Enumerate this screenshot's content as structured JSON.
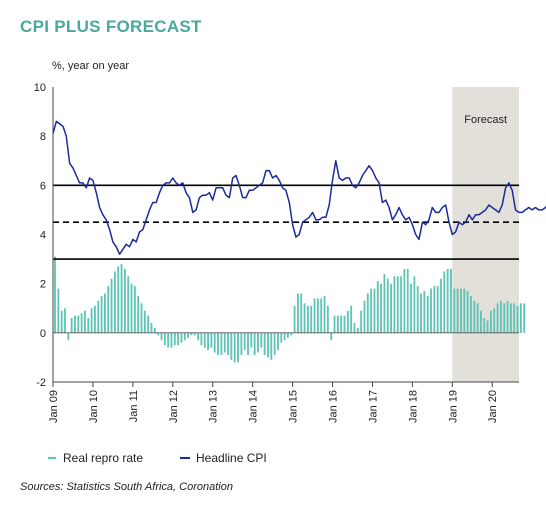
{
  "title": "CPI PLUS FORECAST",
  "source": "Sources: Statistics South Africa, Coronation",
  "colors": {
    "title": "#4aa99c",
    "bars": "#5ec4b6",
    "line": "#1d2a9c",
    "forecast_shade": "#e3e0da",
    "reference_lines": "#000000"
  },
  "chart_data": {
    "type": "bar+line",
    "ylabel": "%, year on year",
    "ylim": [
      -2,
      10
    ],
    "yticks": [
      -2,
      0,
      2,
      4,
      6,
      8,
      10
    ],
    "xlim": [
      2009.0,
      2020.67
    ],
    "xticks": [
      {
        "label": "Jan 09",
        "x": 2009
      },
      {
        "label": "Jan 10",
        "x": 2010
      },
      {
        "label": "Jan 11",
        "x": 2011
      },
      {
        "label": "Jan 12",
        "x": 2012
      },
      {
        "label": "Jan 13",
        "x": 2013
      },
      {
        "label": "Jan 14",
        "x": 2014
      },
      {
        "label": "Jan 15",
        "x": 2015
      },
      {
        "label": "Jan 16",
        "x": 2016
      },
      {
        "label": "Jan 17",
        "x": 2017
      },
      {
        "label": "Jan 18",
        "x": 2018
      },
      {
        "label": "Jan 19",
        "x": 2019
      },
      {
        "label": "Jan 20",
        "x": 2020
      }
    ],
    "forecast": {
      "label": "Forecast",
      "start": 2019.0,
      "end": 2020.67
    },
    "hlines": [
      {
        "y": 6,
        "style": "solid"
      },
      {
        "y": 4.5,
        "style": "dashed"
      },
      {
        "y": 3,
        "style": "solid"
      }
    ],
    "legend": [
      "Real repro rate",
      "Headline CPI"
    ],
    "series": [
      {
        "name": "Real repro rate",
        "type": "bar",
        "start": "Jan 09",
        "values": [
          3.1,
          1.8,
          0.9,
          1.0,
          -0.3,
          0.6,
          0.7,
          0.7,
          0.8,
          0.9,
          0.6,
          1.0,
          1.1,
          1.3,
          1.5,
          1.6,
          1.9,
          2.2,
          2.5,
          2.7,
          2.8,
          2.6,
          2.3,
          2.0,
          1.9,
          1.5,
          1.2,
          0.9,
          0.7,
          0.4,
          0.2,
          -0.1,
          -0.3,
          -0.5,
          -0.6,
          -0.6,
          -0.5,
          -0.5,
          -0.4,
          -0.3,
          -0.2,
          -0.1,
          -0.1,
          -0.3,
          -0.5,
          -0.6,
          -0.7,
          -0.6,
          -0.8,
          -0.9,
          -0.9,
          -0.8,
          -0.9,
          -1.1,
          -1.2,
          -1.2,
          -0.9,
          -0.7,
          -0.9,
          -0.6,
          -0.9,
          -0.8,
          -0.6,
          -0.9,
          -1.0,
          -1.1,
          -0.9,
          -0.7,
          -0.4,
          -0.3,
          -0.2,
          -0.1,
          1.1,
          1.6,
          1.6,
          1.2,
          1.1,
          1.1,
          1.4,
          1.4,
          1.4,
          1.5,
          1.1,
          -0.3,
          0.7,
          0.7,
          0.7,
          0.7,
          0.9,
          1.1,
          0.4,
          0.2,
          0.9,
          1.3,
          1.6,
          1.8,
          1.8,
          2.1,
          2.0,
          2.4,
          2.2,
          2.0,
          2.3,
          2.3,
          2.3,
          2.6,
          2.6,
          2.0,
          2.3,
          1.9,
          1.6,
          1.7,
          1.5,
          1.8,
          1.9,
          1.9,
          2.2,
          2.5,
          2.6,
          2.6,
          1.8,
          1.8,
          1.8,
          1.8,
          1.7,
          1.5,
          1.3,
          1.2,
          0.9,
          0.6,
          0.5,
          0.9,
          1.0,
          1.2,
          1.3,
          1.2,
          1.3,
          1.2,
          1.2,
          1.1,
          1.2,
          1.2
        ]
      },
      {
        "name": "Headline CPI",
        "type": "line",
        "start": "Jan 09",
        "values": [
          8.1,
          8.6,
          8.5,
          8.4,
          8.0,
          6.9,
          6.7,
          6.4,
          6.1,
          6.1,
          5.9,
          6.3,
          6.2,
          5.7,
          5.1,
          4.8,
          4.6,
          4.2,
          3.7,
          3.5,
          3.2,
          3.4,
          3.6,
          3.5,
          3.8,
          3.7,
          4.1,
          4.2,
          4.6,
          5.0,
          5.3,
          5.3,
          5.7,
          6.0,
          6.1,
          6.1,
          6.3,
          6.1,
          6.0,
          6.1,
          5.7,
          5.5,
          4.9,
          5.0,
          5.5,
          5.6,
          5.6,
          5.7,
          5.4,
          5.9,
          5.9,
          5.9,
          5.6,
          5.5,
          6.3,
          6.4,
          6.0,
          5.5,
          5.5,
          5.8,
          5.8,
          5.9,
          6.0,
          6.1,
          6.6,
          6.6,
          6.3,
          6.4,
          6.2,
          5.9,
          5.8,
          5.3,
          4.4,
          3.9,
          4.0,
          4.5,
          4.6,
          4.7,
          4.9,
          4.6,
          4.6,
          4.7,
          4.7,
          5.2,
          6.2,
          7.0,
          6.3,
          6.2,
          6.3,
          6.3,
          6.0,
          5.9,
          6.1,
          6.4,
          6.6,
          6.8,
          6.6,
          6.3,
          6.1,
          5.3,
          5.4,
          5.1,
          4.6,
          4.8,
          5.1,
          4.8,
          4.6,
          4.7,
          4.4,
          4.0,
          3.8,
          4.5,
          4.4,
          4.6,
          5.1,
          4.9,
          4.9,
          5.1,
          5.2,
          4.5,
          4.0,
          4.1,
          4.5,
          4.4,
          4.5,
          4.8,
          4.6,
          4.8,
          4.8,
          4.9,
          5.0,
          5.2,
          5.1,
          5.0,
          4.9,
          5.2,
          5.9,
          6.1,
          5.8,
          5.0,
          4.9,
          4.9,
          5.0,
          5.1,
          5.0,
          5.1,
          5.0,
          5.0,
          5.1,
          5.3,
          5.2,
          5.0,
          5.0,
          5.1,
          5.1,
          5.1
        ]
      }
    ]
  }
}
